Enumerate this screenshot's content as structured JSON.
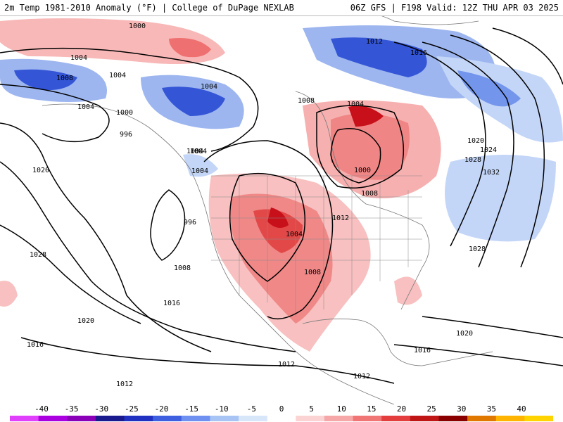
{
  "header": {
    "left_title": "2m Temp 1981-2010 Anomaly (°F) | College of DuPage NEXLAB",
    "right_title": "06Z GFS | F198 Valid: 12Z THU APR 03 2025"
  },
  "pressure_labels": [
    "1000",
    "1004",
    "1004",
    "1008",
    "1004",
    "1004",
    "1000",
    "996",
    "1004",
    "1004",
    "1008",
    "1004",
    "1012",
    "1016",
    "1020",
    "1024",
    "1028",
    "1032",
    "1000",
    "1008",
    "1012",
    "1004",
    "1008",
    "1004",
    "1020",
    "1028",
    "996",
    "1008",
    "1016",
    "1020",
    "1016",
    "1012",
    "1012",
    "1012",
    "1016",
    "1020",
    "1028"
  ],
  "colorbar": {
    "tick_labels": [
      "-40",
      "-35",
      "-30",
      "-25",
      "-20",
      "-15",
      "-10",
      "-5",
      "0",
      "5",
      "10",
      "15",
      "20",
      "25",
      "30",
      "35",
      "40"
    ],
    "colors": [
      "#e040fb",
      "#aa00e0",
      "#8a00b8",
      "#1a1a8f",
      "#2030c0",
      "#3d5fe0",
      "#6f90f0",
      "#a8c4f5",
      "#d8e6fa",
      "#ffffff",
      "#fbd3d3",
      "#f6a7a7",
      "#f07575",
      "#e33d3d",
      "#c01515",
      "#8a0000",
      "#e07800",
      "#ffb400",
      "#ffd400"
    ]
  },
  "colors": {
    "cold_strong": "#3455d6",
    "cold_mid": "#7395ec",
    "cold_light": "#c4d6f7",
    "warm_light": "#fbd3d3",
    "warm_mid": "#f08888",
    "warm_strong": "#c8101a",
    "contour": "#000000",
    "coast": "#777777"
  }
}
